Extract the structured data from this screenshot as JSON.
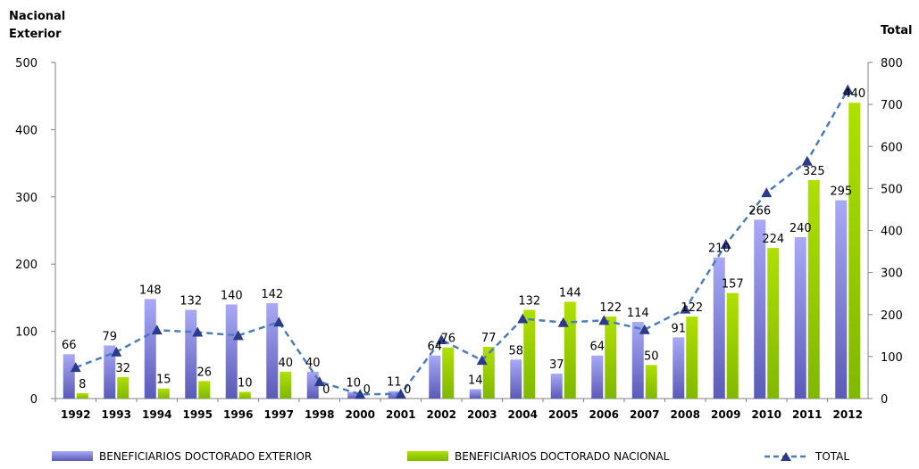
{
  "chart_data": {
    "type": "bar",
    "left_axis_title_line1": "Nacional",
    "left_axis_title_line2": "Exterior",
    "right_axis_title": "Total",
    "categories": [
      "1992",
      "1993",
      "1994",
      "1995",
      "1996",
      "1997",
      "1998",
      "2000",
      "2001",
      "2002",
      "2003",
      "2004",
      "2005",
      "2006",
      "2007",
      "2008",
      "2009",
      "2010",
      "2011",
      "2012"
    ],
    "series": [
      {
        "name": "BENEFICIARIOS DOCTORADO EXTERIOR",
        "axis": "left",
        "color": "#8c8cf0",
        "values": [
          66,
          79,
          148,
          132,
          140,
          142,
          40,
          10,
          11,
          64,
          14,
          58,
          37,
          64,
          114,
          91,
          210,
          266,
          240,
          295
        ],
        "labels": [
          "66",
          "79",
          "148",
          "132",
          "140",
          "142",
          "40",
          "10",
          "11",
          "64",
          "14",
          "58",
          "37",
          "64",
          "114",
          "91",
          "210",
          "266",
          "240",
          "295"
        ]
      },
      {
        "name": "BENEFICIARIOS DOCTORADO NACIONAL",
        "axis": "left",
        "color": "#99cc00",
        "values": [
          8,
          32,
          15,
          26,
          10,
          40,
          0,
          0,
          0,
          76,
          77,
          132,
          144,
          122,
          50,
          122,
          157,
          224,
          325,
          440
        ],
        "labels": [
          "8",
          "32",
          "15",
          "26",
          "10",
          "40",
          "0",
          "0",
          "0",
          "76",
          "77",
          "132",
          "144",
          "122",
          "50",
          "122",
          "157",
          "224",
          "325",
          "440"
        ]
      },
      {
        "name": "TOTAL",
        "axis": "right",
        "type": "line",
        "style": "dashed",
        "marker": "triangle",
        "color": "#4a7ebb",
        "marker_color": "#2b3a8a",
        "values": [
          74,
          111,
          163,
          158,
          150,
          182,
          40,
          10,
          11,
          140,
          91,
          190,
          181,
          186,
          164,
          213,
          367,
          490,
          565,
          735
        ]
      }
    ],
    "ylim_left": [
      0,
      500
    ],
    "yticks_left": [
      "0",
      "100",
      "200",
      "300",
      "400",
      "500"
    ],
    "ylim_right": [
      0,
      800
    ],
    "yticks_right": [
      "0",
      "100",
      "200",
      "300",
      "400",
      "500",
      "600",
      "700",
      "800"
    ],
    "grid": false,
    "legend_position": "bottom"
  }
}
